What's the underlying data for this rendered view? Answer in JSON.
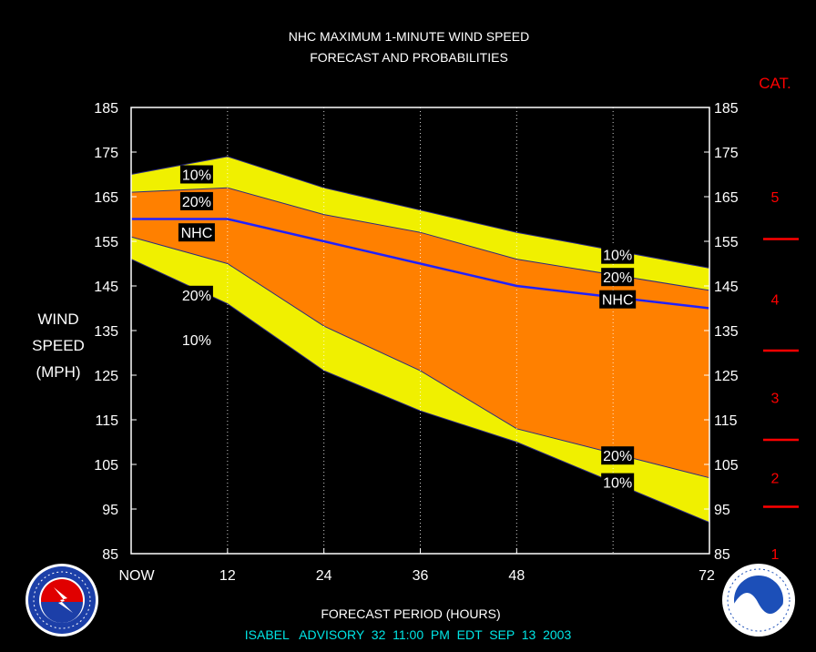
{
  "title_line1": "NHC MAXIMUM 1-MINUTE WIND SPEED",
  "title_line2": "FORECAST AND PROBABILITIES",
  "ylabel_lines": [
    "WIND",
    "SPEED",
    "(MPH)"
  ],
  "xlabel": "FORECAST PERIOD (HOURS)",
  "advisory": "ISABEL   ADVISORY  32  11:00  PM  EDT  SEP  13  2003",
  "cat_title": "CAT.",
  "categories": [
    {
      "label": "1",
      "value": 85
    },
    {
      "label": "2",
      "value": 102
    },
    {
      "label": "3",
      "value": 120
    },
    {
      "label": "4",
      "value": 142
    },
    {
      "label": "5",
      "value": 165
    }
  ],
  "category_boundaries": [
    95.5,
    110.5,
    130.5,
    155.5
  ],
  "colors": {
    "outer_band": "#f0f000",
    "inner_band": "#ff8000",
    "nhc_line": "#2020ff",
    "category_text": "#ff0000",
    "advisory_text": "#00e5e5",
    "label_box": "#000000"
  },
  "chart_data": {
    "type": "area",
    "title": "NHC MAXIMUM 1-MINUTE WIND SPEED FORECAST AND PROBABILITIES",
    "xlabel": "FORECAST PERIOD (HOURS)",
    "ylabel": "WIND SPEED (MPH)",
    "x": [
      0,
      12,
      24,
      36,
      48,
      72
    ],
    "xtick_labels": [
      "NOW",
      "12",
      "24",
      "36",
      "48",
      "72"
    ],
    "xlim": [
      0,
      72
    ],
    "ylim": [
      85,
      185
    ],
    "yticks": [
      85,
      95,
      105,
      115,
      125,
      135,
      145,
      155,
      165,
      175,
      185
    ],
    "series": [
      {
        "name": "10%",
        "upper": [
          170,
          174,
          167,
          162,
          157,
          149
        ],
        "lower": [
          151,
          141,
          126,
          117,
          110,
          92
        ]
      },
      {
        "name": "20%",
        "upper": [
          166,
          167,
          161,
          157,
          151,
          144
        ],
        "lower": [
          156,
          150,
          136,
          126,
          113,
          102
        ]
      },
      {
        "name": "NHC",
        "values": [
          160,
          160,
          155,
          150,
          145,
          140
        ]
      }
    ],
    "band_labels": [
      {
        "text": "10%",
        "x": 6,
        "y": 170
      },
      {
        "text": "20%",
        "x": 6,
        "y": 164
      },
      {
        "text": "NHC",
        "x": 6,
        "y": 157
      },
      {
        "text": "20%",
        "x": 6,
        "y": 143
      },
      {
        "text": "10%",
        "x": 6,
        "y": 133
      },
      {
        "text": "10%",
        "x": 60,
        "y": 152
      },
      {
        "text": "20%",
        "x": 60,
        "y": 147
      },
      {
        "text": "NHC",
        "x": 60,
        "y": 142
      },
      {
        "text": "20%",
        "x": 60,
        "y": 107
      },
      {
        "text": "10%",
        "x": 60,
        "y": 101
      }
    ],
    "vertical_gridlines": [
      12,
      24,
      36,
      48,
      60
    ]
  }
}
